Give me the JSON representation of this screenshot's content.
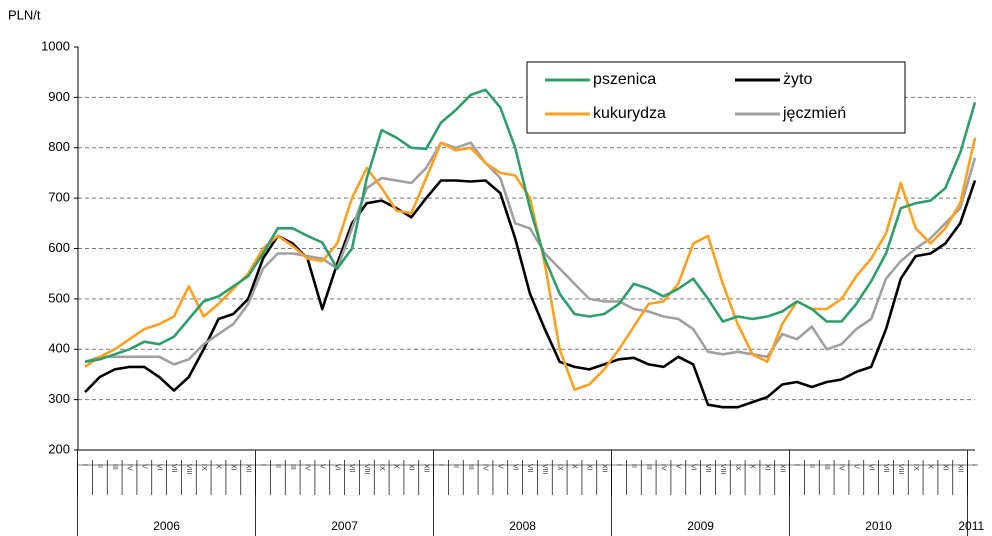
{
  "chart_data": {
    "type": "line",
    "y_label": "PLN/t",
    "ylim": [
      200,
      1000
    ],
    "yticks": [
      200,
      300,
      400,
      500,
      600,
      700,
      800,
      900,
      1000
    ],
    "grid": true,
    "legend": "upper right",
    "categories": [
      "I",
      "II",
      "III",
      "IV",
      "V",
      "VI",
      "VII",
      "VIII",
      "IX",
      "X",
      "XI",
      "XII",
      "I",
      "II",
      "III",
      "IV",
      "V",
      "VI",
      "VII",
      "VIII",
      "IX",
      "X",
      "XI",
      "XII",
      "I",
      "II",
      "III",
      "IV",
      "V",
      "VI",
      "VII",
      "VIII",
      "IX",
      "X",
      "XI",
      "XII",
      "I",
      "II",
      "III",
      "IV",
      "V",
      "VI",
      "VII",
      "VIII",
      "IX",
      "X",
      "XI",
      "XII",
      "I",
      "II",
      "III",
      "IV",
      "V",
      "VI",
      "VII",
      "VIII",
      "IX",
      "X",
      "XI",
      "XII",
      "I"
    ],
    "years": [
      "2006",
      "2007",
      "2008",
      "2009",
      "2010",
      "2011"
    ],
    "series": [
      {
        "name": "pszenica",
        "color": "#2e9e6a",
        "values": [
          375,
          380,
          390,
          400,
          415,
          410,
          425,
          460,
          495,
          505,
          525,
          545,
          590,
          640,
          640,
          625,
          612,
          560,
          600,
          740,
          835,
          820,
          800,
          798,
          850,
          875,
          905,
          915,
          880,
          800,
          680,
          580,
          510,
          470,
          465,
          470,
          490,
          530,
          520,
          505,
          520,
          540,
          500,
          455,
          465,
          460,
          465,
          475,
          495,
          480,
          455,
          455,
          490,
          535,
          590,
          680,
          690,
          695,
          720,
          790,
          890
        ]
      },
      {
        "name": "żyto",
        "color": "#000000",
        "values": [
          315,
          345,
          360,
          365,
          365,
          345,
          318,
          345,
          400,
          460,
          470,
          500,
          580,
          625,
          610,
          580,
          480,
          570,
          650,
          690,
          695,
          680,
          662,
          700,
          735,
          735,
          733,
          735,
          710,
          620,
          510,
          440,
          375,
          365,
          360,
          370,
          380,
          383,
          370,
          365,
          385,
          370,
          290,
          285,
          285,
          295,
          305,
          330,
          335,
          325,
          335,
          340,
          355,
          365,
          440,
          540,
          585,
          590,
          610,
          650,
          735
        ]
      },
      {
        "name": "kukurydza",
        "color": "#ffa020",
        "values": [
          365,
          385,
          400,
          420,
          440,
          450,
          465,
          525,
          465,
          490,
          520,
          550,
          600,
          625,
          605,
          580,
          575,
          610,
          700,
          760,
          720,
          675,
          670,
          740,
          810,
          795,
          800,
          770,
          750,
          745,
          700,
          570,
          400,
          320,
          330,
          360,
          400,
          445,
          490,
          495,
          530,
          610,
          625,
          530,
          450,
          390,
          375,
          450,
          495,
          480,
          480,
          500,
          545,
          580,
          630,
          730,
          640,
          610,
          640,
          690,
          820
        ]
      },
      {
        "name": "jęczmień",
        "color": "#a0a0a0",
        "values": [
          375,
          385,
          385,
          385,
          385,
          385,
          370,
          380,
          410,
          430,
          450,
          490,
          560,
          590,
          590,
          585,
          580,
          560,
          640,
          720,
          740,
          735,
          730,
          760,
          810,
          800,
          810,
          770,
          740,
          650,
          640,
          590,
          560,
          530,
          500,
          495,
          495,
          480,
          475,
          465,
          460,
          440,
          395,
          390,
          395,
          390,
          385,
          430,
          420,
          445,
          400,
          410,
          440,
          460,
          540,
          575,
          600,
          620,
          650,
          680,
          780
        ]
      }
    ]
  }
}
